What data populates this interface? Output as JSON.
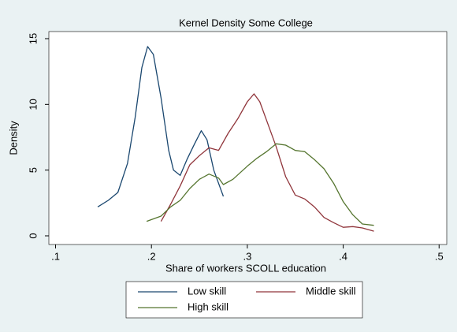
{
  "chart_data": {
    "type": "line",
    "title": "Kernel Density  Some College",
    "x_label": "Share of workers SCOLL education",
    "y_label": "Density",
    "xlim": [
      0.093,
      0.508
    ],
    "ylim": [
      -0.66,
      15.54
    ],
    "xticks": [
      {
        "value": 0.1,
        "label": ".1"
      },
      {
        "value": 0.2,
        "label": ".2"
      },
      {
        "value": 0.3,
        "label": ".3"
      },
      {
        "value": 0.4,
        "label": ".4"
      },
      {
        "value": 0.5,
        "label": ".5"
      }
    ],
    "yticks": [
      0,
      5,
      10,
      15
    ],
    "grid": false,
    "series": [
      {
        "name": "Low skill",
        "color": "#1a476f",
        "x": [
          0.144,
          0.155,
          0.165,
          0.175,
          0.183,
          0.19,
          0.196,
          0.202,
          0.21,
          0.218,
          0.223,
          0.23,
          0.237,
          0.245,
          0.252,
          0.258,
          0.265,
          0.275
        ],
        "values": [
          2.2,
          2.7,
          3.3,
          5.5,
          9,
          12.8,
          14.4,
          13.8,
          10.5,
          6.5,
          5,
          4.6,
          5.8,
          7,
          8,
          7.3,
          5,
          3
        ]
      },
      {
        "name": "Middle skill",
        "color": "#90353b",
        "x": [
          0.21,
          0.22,
          0.23,
          0.24,
          0.25,
          0.26,
          0.27,
          0.28,
          0.29,
          0.3,
          0.307,
          0.313,
          0.32,
          0.33,
          0.34,
          0.35,
          0.36,
          0.37,
          0.38,
          0.39,
          0.4,
          0.41,
          0.42,
          0.432
        ],
        "values": [
          1.1,
          2.4,
          3.8,
          5.4,
          6.1,
          6.7,
          6.5,
          7.8,
          8.9,
          10.2,
          10.8,
          10.2,
          8.8,
          6.8,
          4.5,
          3.1,
          2.8,
          2.2,
          1.4,
          1.0,
          0.65,
          0.7,
          0.6,
          0.35
        ]
      },
      {
        "name": "High skill",
        "color": "#55752f",
        "x": [
          0.195,
          0.21,
          0.22,
          0.23,
          0.24,
          0.25,
          0.26,
          0.27,
          0.275,
          0.285,
          0.3,
          0.31,
          0.32,
          0.33,
          0.34,
          0.35,
          0.36,
          0.37,
          0.38,
          0.39,
          0.4,
          0.41,
          0.42,
          0.432
        ],
        "values": [
          1.1,
          1.5,
          2.2,
          2.7,
          3.6,
          4.3,
          4.7,
          4.4,
          3.9,
          4.3,
          5.3,
          5.9,
          6.4,
          7.0,
          6.9,
          6.5,
          6.4,
          5.8,
          5.1,
          4.0,
          2.6,
          1.6,
          0.9,
          0.8
        ]
      }
    ]
  }
}
